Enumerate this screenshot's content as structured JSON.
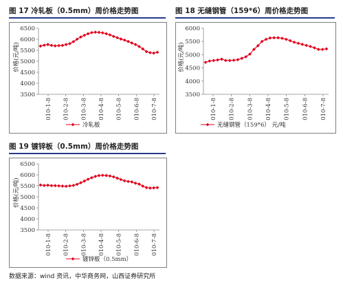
{
  "figures": [
    {
      "title": "图 17 冷轧板（0.5mm）周价格走势图"
    },
    {
      "title": "图 18 无缝钢管（159*6）周价格走势图"
    },
    {
      "title": "图 19 镀锌板（0.5mm）周价格走势图"
    }
  ],
  "source_note": "数据来源：wind 资讯，中华商务网，山西证券研究所",
  "colors": {
    "series": "#e0001b",
    "rule": "#243a8a",
    "grid": "#d0d0d0"
  },
  "chart_data": [
    {
      "type": "line",
      "title": "",
      "xlabel": "",
      "ylabel": "价格(元/吨)",
      "ylim": [
        3500,
        6500
      ],
      "yticks": [
        3500,
        4000,
        4500,
        5000,
        5500,
        6000,
        6500
      ],
      "xticks": [
        "010-1-8",
        "010-2-8",
        "010-3-8",
        "010-4-8",
        "010-5-8",
        "010-6-8",
        "010-7-8"
      ],
      "legend": "bottom",
      "series": [
        {
          "name": "冷轧板",
          "values": [
            5690,
            5730,
            5760,
            5720,
            5700,
            5710,
            5720,
            5760,
            5800,
            5890,
            6000,
            6100,
            6180,
            6250,
            6300,
            6320,
            6310,
            6290,
            6250,
            6200,
            6130,
            6070,
            6010,
            5960,
            5900,
            5830,
            5760,
            5670,
            5560,
            5440,
            5390,
            5370,
            5410
          ]
        }
      ]
    },
    {
      "type": "line",
      "title": "",
      "xlabel": "",
      "ylabel": "价格(元/吨)",
      "ylim": [
        3500,
        6000
      ],
      "yticks": [
        3500,
        4000,
        4500,
        5000,
        5500,
        6000
      ],
      "xticks": [
        "010-1-8",
        "010-2-8",
        "010-3-8",
        "010-4-8",
        "010-5-8",
        "010-6-8",
        "010-7-8"
      ],
      "legend": "bottom",
      "series": [
        {
          "name": "无缝钢管（159*6） 元/吨",
          "values": [
            4710,
            4760,
            4780,
            4800,
            4830,
            4780,
            4780,
            4790,
            4810,
            4860,
            4920,
            5020,
            5200,
            5340,
            5500,
            5580,
            5630,
            5640,
            5640,
            5620,
            5580,
            5530,
            5470,
            5430,
            5390,
            5350,
            5310,
            5260,
            5200,
            5200,
            5220
          ]
        }
      ]
    },
    {
      "type": "line",
      "title": "",
      "xlabel": "",
      "ylabel": "价格(元/吨)",
      "ylim": [
        3500,
        6500
      ],
      "yticks": [
        3500,
        4000,
        4500,
        5000,
        5500,
        6000,
        6500
      ],
      "xticks": [
        "010-1-8",
        "010-2-8",
        "010-3-8",
        "010-4-8",
        "010-5-8",
        "010-6-8",
        "010-7-8"
      ],
      "legend": "bottom",
      "series": [
        {
          "name": "镀锌板（0.5mm）",
          "values": [
            5540,
            5520,
            5530,
            5510,
            5510,
            5500,
            5490,
            5480,
            5500,
            5520,
            5570,
            5640,
            5720,
            5800,
            5870,
            5930,
            5970,
            5980,
            5970,
            5950,
            5910,
            5850,
            5790,
            5730,
            5700,
            5680,
            5620,
            5580,
            5490,
            5420,
            5400,
            5410,
            5420
          ]
        }
      ]
    }
  ]
}
